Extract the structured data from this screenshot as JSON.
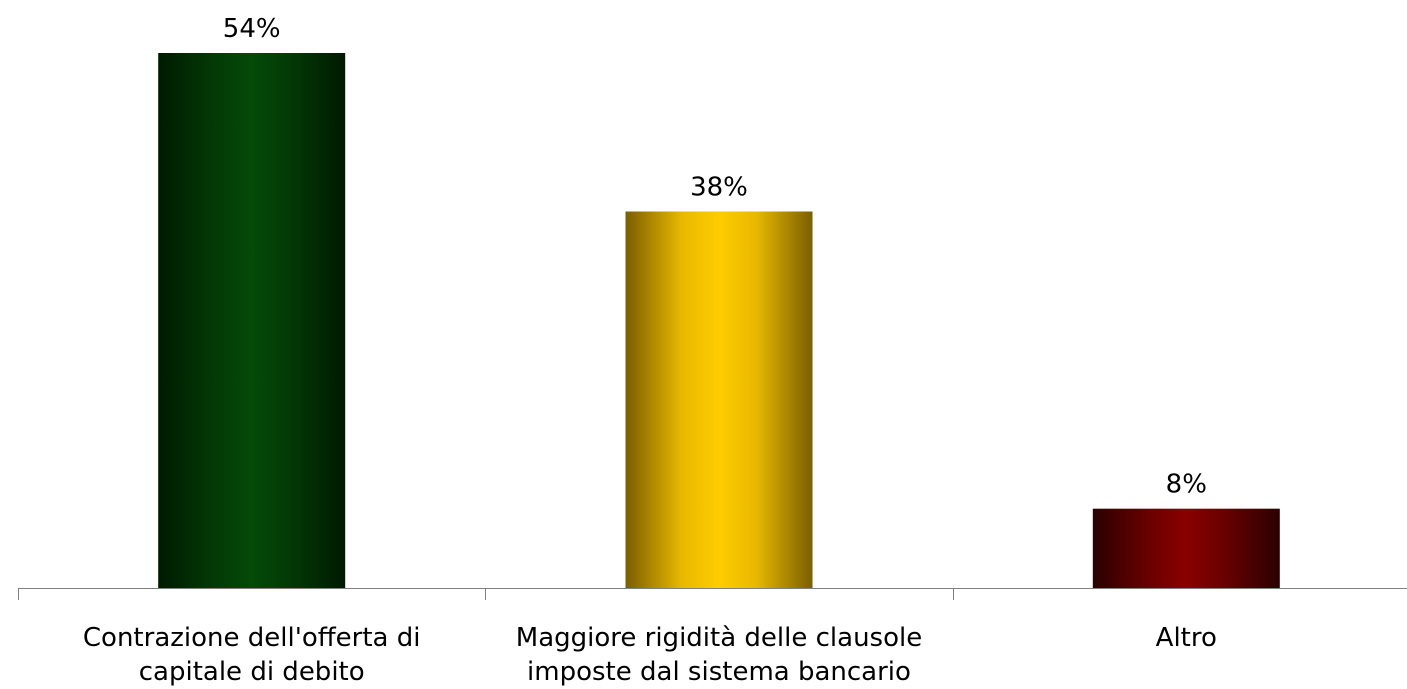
{
  "chart_data": {
    "type": "bar",
    "categories": [
      [
        "Contrazione dell'offerta di",
        "capitale di debito"
      ],
      [
        "Maggiore rigidità delle clausole",
        "imposte dal sistema bancario"
      ],
      [
        "Altro"
      ]
    ],
    "values": [
      54,
      38,
      8
    ],
    "data_labels": [
      "54%",
      "38%",
      "8%"
    ],
    "ylim": [
      0,
      54
    ],
    "grid": false,
    "legend": "none",
    "colors": {
      "bar_1": {
        "dark": "#001a00",
        "mid": "#033a06",
        "light": "#044a08"
      },
      "bar_2": {
        "dark": "#7a5e00",
        "mid": "#e8b800",
        "light": "#ffcc00"
      },
      "bar_3": {
        "dark": "#2a0000",
        "mid": "#6a0000",
        "light": "#8a0000"
      },
      "axis": "#808080"
    }
  }
}
